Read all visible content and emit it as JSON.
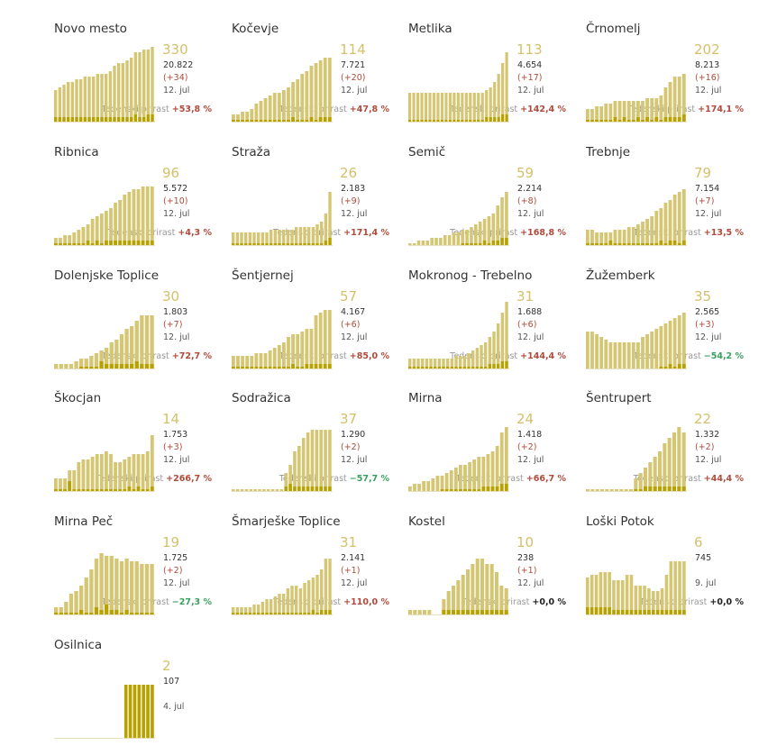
{
  "growth_label": "Tedenski prirast",
  "colors": {
    "bar_total": "#d4c673",
    "bar_new": "#b8a200",
    "active": "#d4c06a",
    "pos": "#b04a3a",
    "neg": "#3aa060",
    "zero": "#222222"
  },
  "chart_data": [
    {
      "type": "bar",
      "name": "Novo mesto",
      "active": "330",
      "cases": "20.822",
      "delta": "(+34)",
      "date": "12. jul",
      "growth": "+53,8 %",
      "sign": "pos",
      "total": [
        12,
        13,
        14,
        15,
        15,
        16,
        16,
        17,
        17,
        17,
        18,
        18,
        18,
        19,
        21,
        22,
        22,
        23,
        24,
        26,
        26,
        27,
        27,
        28
      ],
      "new": [
        2,
        2,
        2,
        2,
        2,
        2,
        2,
        2,
        2,
        2,
        2,
        2,
        2,
        2,
        2,
        2,
        2,
        2,
        2,
        3,
        2,
        2,
        3,
        3
      ]
    },
    {
      "type": "bar",
      "name": "Kočevje",
      "active": "114",
      "cases": "7.721",
      "delta": "(+20)",
      "date": "12. jul",
      "growth": "+47,8 %",
      "sign": "pos",
      "total": [
        3,
        3,
        4,
        4,
        5,
        7,
        8,
        9,
        10,
        11,
        11,
        12,
        13,
        15,
        16,
        18,
        19,
        21,
        22,
        23,
        24,
        24
      ],
      "new": [
        1,
        1,
        1,
        1,
        1,
        1,
        1,
        1,
        1,
        1,
        1,
        1,
        1,
        2,
        1,
        1,
        1,
        2,
        1,
        2,
        2,
        2
      ]
    },
    {
      "type": "bar",
      "name": "Metlika",
      "active": "113",
      "cases": "4.654",
      "delta": "(+17)",
      "date": "12. jul",
      "growth": "+142,4 %",
      "sign": "pos",
      "total": [
        11,
        11,
        11,
        11,
        11,
        11,
        11,
        11,
        11,
        11,
        11,
        11,
        11,
        11,
        11,
        11,
        11,
        11,
        11,
        12,
        13,
        15,
        18,
        22,
        26
      ],
      "new": [
        1,
        1,
        1,
        1,
        1,
        1,
        1,
        1,
        1,
        1,
        1,
        1,
        1,
        1,
        1,
        1,
        1,
        1,
        1,
        2,
        2,
        2,
        2,
        3,
        3
      ]
    },
    {
      "type": "bar",
      "name": "Črnomelj",
      "active": "202",
      "cases": "8.213",
      "delta": "(+16)",
      "date": "12. jul",
      "growth": "+174,1 %",
      "sign": "pos",
      "total": [
        5,
        5,
        6,
        6,
        7,
        7,
        8,
        8,
        8,
        8,
        8,
        8,
        8,
        9,
        9,
        9,
        10,
        13,
        15,
        17,
        17,
        18
      ],
      "new": [
        1,
        1,
        1,
        1,
        1,
        1,
        2,
        1,
        2,
        1,
        1,
        2,
        1,
        2,
        1,
        2,
        1,
        2,
        2,
        2,
        2,
        3
      ]
    },
    {
      "type": "bar",
      "name": "Ribnica",
      "active": "96",
      "cases": "5.572",
      "delta": "(+10)",
      "date": "12. jul",
      "growth": "+4,3 %",
      "sign": "pos",
      "total": [
        3,
        3,
        4,
        4,
        5,
        6,
        7,
        8,
        10,
        11,
        12,
        13,
        14,
        16,
        17,
        19,
        20,
        21,
        21,
        22,
        22,
        22
      ],
      "new": [
        1,
        1,
        1,
        1,
        1,
        1,
        1,
        2,
        1,
        2,
        1,
        2,
        2,
        2,
        2,
        2,
        2,
        2,
        2,
        2,
        2,
        2
      ]
    },
    {
      "type": "bar",
      "name": "Straža",
      "active": "26",
      "cases": "2.183",
      "delta": "(+9)",
      "date": "12. jul",
      "growth": "+171,4 %",
      "sign": "pos",
      "total": [
        5,
        5,
        5,
        5,
        5,
        5,
        5,
        5,
        5,
        6,
        6,
        6,
        6,
        6,
        6,
        7,
        7,
        7,
        7,
        7,
        8,
        9,
        12,
        20
      ],
      "new": [
        1,
        1,
        1,
        1,
        1,
        1,
        1,
        1,
        1,
        1,
        1,
        1,
        1,
        1,
        1,
        1,
        1,
        1,
        1,
        1,
        1,
        1,
        2,
        3
      ]
    },
    {
      "type": "bar",
      "name": "Semič",
      "active": "59",
      "cases": "2.214",
      "delta": "(+8)",
      "date": "12. jul",
      "growth": "+168,8 %",
      "sign": "pos",
      "total": [
        1,
        1,
        2,
        2,
        2,
        3,
        3,
        3,
        4,
        4,
        5,
        5,
        6,
        6,
        7,
        8,
        9,
        10,
        11,
        12,
        15,
        18,
        20
      ],
      "new": [
        0,
        0,
        0,
        0,
        0,
        0,
        0,
        0,
        0,
        0,
        0,
        0,
        1,
        1,
        1,
        1,
        1,
        2,
        1,
        2,
        2,
        3,
        3
      ]
    },
    {
      "type": "bar",
      "name": "Trebnje",
      "active": "79",
      "cases": "7.154",
      "delta": "(+7)",
      "date": "12. jul",
      "growth": "+13,5 %",
      "sign": "pos",
      "total": [
        6,
        6,
        5,
        5,
        5,
        5,
        6,
        6,
        6,
        7,
        7,
        8,
        9,
        10,
        11,
        13,
        14,
        16,
        17,
        19,
        20,
        21
      ],
      "new": [
        1,
        1,
        1,
        1,
        1,
        2,
        1,
        1,
        1,
        1,
        1,
        1,
        1,
        1,
        1,
        1,
        2,
        1,
        2,
        2,
        1,
        2
      ]
    },
    {
      "type": "bar",
      "name": "Dolenjske Toplice",
      "active": "30",
      "cases": "1.803",
      "delta": "(+7)",
      "date": "12. jul",
      "growth": "+72,7 %",
      "sign": "pos",
      "total": [
        2,
        2,
        2,
        2,
        3,
        4,
        4,
        5,
        6,
        7,
        8,
        10,
        11,
        13,
        15,
        16,
        18,
        20,
        20,
        20
      ],
      "new": [
        0,
        0,
        0,
        0,
        0,
        1,
        1,
        1,
        1,
        3,
        2,
        2,
        2,
        2,
        2,
        2,
        3,
        2,
        2,
        2
      ]
    },
    {
      "type": "bar",
      "name": "Šentjernej",
      "active": "57",
      "cases": "4.167",
      "delta": "(+6)",
      "date": "12. jul",
      "growth": "+85,0 %",
      "sign": "pos",
      "total": [
        5,
        5,
        5,
        5,
        5,
        6,
        6,
        6,
        7,
        8,
        9,
        10,
        12,
        13,
        13,
        14,
        15,
        15,
        20,
        21,
        22,
        22
      ],
      "new": [
        1,
        1,
        1,
        1,
        1,
        1,
        1,
        1,
        1,
        1,
        1,
        1,
        1,
        2,
        1,
        1,
        2,
        2,
        2,
        2,
        2,
        2
      ]
    },
    {
      "type": "bar",
      "name": "Mokronog - Trebelno",
      "active": "31",
      "cases": "1.688",
      "delta": "(+6)",
      "date": "12. jul",
      "growth": "+144,4 %",
      "sign": "pos",
      "total": [
        4,
        4,
        4,
        4,
        4,
        4,
        4,
        4,
        4,
        4,
        4,
        5,
        5,
        5,
        6,
        7,
        8,
        9,
        10,
        12,
        14,
        17,
        21,
        25
      ],
      "new": [
        1,
        1,
        1,
        1,
        1,
        1,
        1,
        1,
        1,
        1,
        1,
        1,
        1,
        1,
        1,
        1,
        1,
        1,
        1,
        2,
        2,
        2,
        3,
        3
      ]
    },
    {
      "type": "bar",
      "name": "Žužemberk",
      "active": "35",
      "cases": "2.565",
      "delta": "(+3)",
      "date": "12. jul",
      "growth": "−54,2 %",
      "sign": "neg",
      "total": [
        14,
        14,
        13,
        12,
        11,
        10,
        10,
        10,
        10,
        10,
        10,
        10,
        12,
        13,
        14,
        15,
        16,
        17,
        18,
        19,
        20,
        21
      ],
      "new": [
        0,
        0,
        0,
        0,
        0,
        0,
        0,
        0,
        0,
        0,
        0,
        0,
        0,
        0,
        0,
        0,
        1,
        1,
        2,
        1,
        2,
        2
      ]
    },
    {
      "type": "bar",
      "name": "Škocjan",
      "active": "14",
      "cases": "1.753",
      "delta": "(+3)",
      "date": "12. jul",
      "growth": "+266,7 %",
      "sign": "pos",
      "total": [
        5,
        5,
        5,
        8,
        8,
        11,
        12,
        12,
        13,
        14,
        14,
        15,
        14,
        11,
        11,
        12,
        13,
        14,
        14,
        14,
        15,
        21
      ],
      "new": [
        1,
        1,
        1,
        4,
        1,
        1,
        1,
        1,
        1,
        1,
        1,
        1,
        1,
        1,
        1,
        1,
        2,
        1,
        2,
        1,
        1,
        2
      ]
    },
    {
      "type": "bar",
      "name": "Sodražica",
      "active": "37",
      "cases": "1.290",
      "delta": "(+2)",
      "date": "12. jul",
      "growth": "−57,7 %",
      "sign": "neg",
      "total": [
        1,
        1,
        1,
        1,
        1,
        1,
        1,
        1,
        1,
        1,
        1,
        1,
        7,
        10,
        15,
        17,
        20,
        22,
        23,
        23,
        23,
        23,
        23
      ],
      "new": [
        0,
        0,
        0,
        0,
        0,
        0,
        0,
        0,
        0,
        0,
        0,
        0,
        2,
        3,
        2,
        2,
        2,
        2,
        2,
        2,
        2,
        2,
        2
      ]
    },
    {
      "type": "bar",
      "name": "Mirna",
      "active": "24",
      "cases": "1.418",
      "delta": "(+2)",
      "date": "12. jul",
      "growth": "+66,7 %",
      "sign": "pos",
      "total": [
        2,
        3,
        3,
        4,
        4,
        5,
        6,
        6,
        7,
        8,
        9,
        10,
        10,
        11,
        12,
        13,
        13,
        14,
        15,
        17,
        22,
        24
      ],
      "new": [
        0,
        0,
        0,
        0,
        0,
        0,
        0,
        1,
        1,
        1,
        1,
        1,
        1,
        1,
        1,
        1,
        2,
        2,
        2,
        2,
        3,
        3
      ]
    },
    {
      "type": "bar",
      "name": "Šentrupert",
      "active": "22",
      "cases": "1.332",
      "delta": "(+2)",
      "date": "12. jul",
      "growth": "+44,4 %",
      "sign": "pos",
      "total": [
        1,
        1,
        1,
        1,
        1,
        1,
        1,
        1,
        1,
        1,
        5,
        7,
        9,
        11,
        13,
        15,
        18,
        20,
        22,
        24,
        22
      ],
      "new": [
        0,
        0,
        0,
        0,
        0,
        0,
        0,
        0,
        0,
        0,
        1,
        1,
        2,
        2,
        2,
        2,
        2,
        2,
        2,
        2,
        2
      ]
    },
    {
      "type": "bar",
      "name": "Mirna Peč",
      "active": "19",
      "cases": "1.725",
      "delta": "(+2)",
      "date": "12. jul",
      "growth": "−27,3 %",
      "sign": "neg",
      "total": [
        3,
        3,
        5,
        8,
        9,
        11,
        14,
        17,
        21,
        23,
        22,
        22,
        21,
        20,
        21,
        20,
        20,
        19,
        19,
        19
      ],
      "new": [
        1,
        1,
        1,
        1,
        1,
        2,
        1,
        1,
        3,
        2,
        4,
        2,
        2,
        1,
        2,
        1,
        1,
        1,
        1,
        1
      ]
    },
    {
      "type": "bar",
      "name": "Šmarješke Toplice",
      "active": "31",
      "cases": "2.141",
      "delta": "(+1)",
      "date": "12. jul",
      "growth": "+110,0 %",
      "sign": "pos",
      "total": [
        3,
        3,
        3,
        3,
        3,
        4,
        4,
        5,
        6,
        6,
        7,
        8,
        8,
        10,
        11,
        11,
        10,
        12,
        13,
        14,
        15,
        17,
        21,
        21
      ],
      "new": [
        1,
        1,
        1,
        1,
        1,
        1,
        1,
        1,
        1,
        1,
        1,
        1,
        1,
        1,
        1,
        1,
        1,
        1,
        1,
        2,
        1,
        2,
        2,
        2
      ]
    },
    {
      "type": "bar",
      "name": "Kostel",
      "active": "10",
      "cases": "238",
      "delta": "(+1)",
      "date": "12. jul",
      "growth": "+0,0 %",
      "sign": "zero",
      "total": [
        2,
        2,
        2,
        2,
        2,
        0,
        0,
        6,
        9,
        11,
        13,
        15,
        17,
        19,
        21,
        21,
        19,
        19,
        16,
        11,
        10
      ],
      "new": [
        0,
        0,
        0,
        0,
        0,
        0,
        0,
        2,
        2,
        2,
        2,
        2,
        2,
        2,
        2,
        2,
        2,
        2,
        2,
        2,
        2
      ]
    },
    {
      "type": "bar",
      "name": "Loški Potok",
      "active": "6",
      "cases": "745",
      "delta": "",
      "date": "9. jul",
      "growth": "+0,0 %",
      "sign": "zero",
      "total": [
        14,
        15,
        15,
        16,
        16,
        16,
        13,
        13,
        13,
        15,
        15,
        11,
        11,
        11,
        10,
        9,
        9,
        10,
        15,
        20,
        20,
        20,
        20
      ],
      "new": [
        3,
        3,
        3,
        3,
        3,
        3,
        2,
        2,
        2,
        2,
        2,
        2,
        2,
        2,
        2,
        2,
        2,
        2,
        2,
        2,
        2,
        2,
        2
      ]
    },
    {
      "type": "bar",
      "name": "Osilnica",
      "active": "2",
      "cases": "107",
      "delta": "",
      "date": "4. jul",
      "growth": "",
      "sign": "zero",
      "total": [
        0,
        0,
        0,
        0,
        0,
        0,
        0,
        0,
        0,
        0,
        0,
        0,
        0,
        0,
        0,
        0,
        20,
        20,
        20,
        20,
        20,
        20,
        20
      ],
      "new": [
        0,
        0,
        0,
        0,
        0,
        0,
        0,
        0,
        0,
        0,
        0,
        0,
        0,
        0,
        0,
        0,
        20,
        20,
        20,
        20,
        20,
        20,
        20
      ]
    }
  ]
}
